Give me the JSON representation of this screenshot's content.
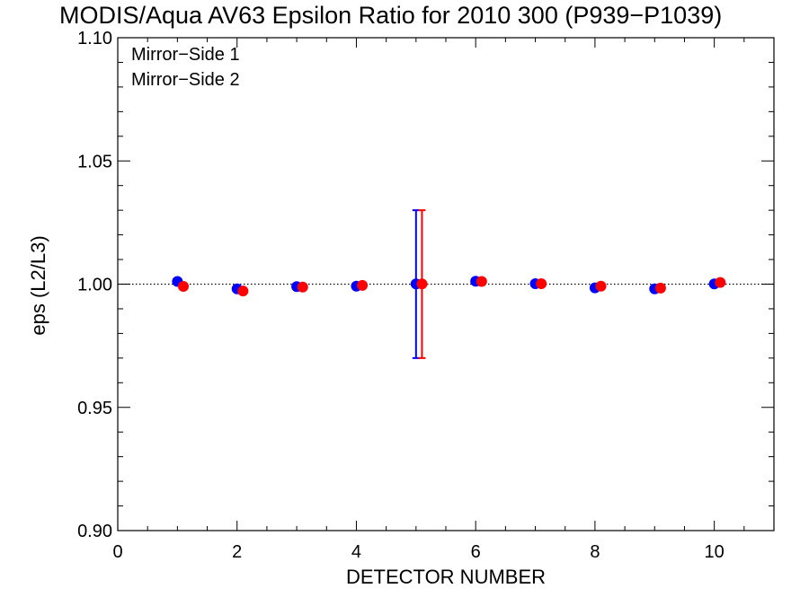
{
  "chart_data": {
    "type": "scatter",
    "title": "MODIS/Aqua AV63 Epsilon Ratio for 2010 300 (P939−P1039)",
    "xlabel": "DETECTOR NUMBER",
    "ylabel": "eps (L2/L3)",
    "xlim": [
      0,
      11
    ],
    "ylim": [
      0.9,
      1.1
    ],
    "xticks": [
      0,
      2,
      4,
      6,
      8,
      10
    ],
    "xtick_labels": [
      "0",
      "2",
      "4",
      "6",
      "8",
      "10"
    ],
    "yticks": [
      0.9,
      0.95,
      1.0,
      1.05,
      1.1
    ],
    "ytick_labels": [
      "0.90",
      "0.95",
      "1.00",
      "1.05",
      "1.10"
    ],
    "reference_line": {
      "y": 1.0,
      "style": "dotted"
    },
    "legend_position": "top-left",
    "series": [
      {
        "name": "Mirror−Side 1",
        "color": "#0000ff",
        "x": [
          1,
          2,
          3,
          4,
          5,
          6,
          7,
          8,
          9,
          10
        ],
        "y": [
          1.0011,
          0.9981,
          0.999,
          0.9992,
          1.0001,
          1.0012,
          1.0002,
          0.9985,
          0.9981,
          1.0001
        ],
        "error_bar": {
          "x": 5,
          "low": 0.97,
          "high": 1.03
        }
      },
      {
        "name": "Mirror−Side 2",
        "color": "#ff0000",
        "x": [
          1.1,
          2.1,
          3.1,
          4.1,
          5.1,
          6.1,
          7.1,
          8.1,
          9.1,
          10.1
        ],
        "y": [
          0.9991,
          0.9972,
          0.9988,
          0.9995,
          1.0001,
          1.0011,
          1.0002,
          0.9992,
          0.9984,
          1.0007
        ],
        "error_bar": {
          "x": 5.1,
          "low": 0.97,
          "high": 1.03
        }
      }
    ]
  }
}
